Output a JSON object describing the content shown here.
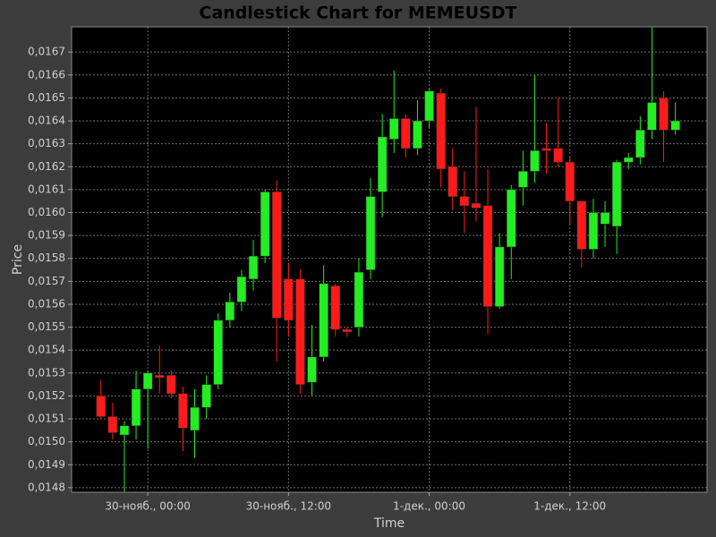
{
  "chart_data": {
    "type": "candlestick",
    "title": "Candlestick Chart for MEMEUSDT",
    "x_label": "Time",
    "y_label": "Price",
    "categories": [
      null,
      null,
      null,
      null,
      "30-нояб., 00:00",
      null,
      null,
      null,
      null,
      null,
      null,
      null,
      null,
      null,
      null,
      null,
      "30-нояб., 12:00",
      null,
      null,
      null,
      null,
      null,
      null,
      null,
      null,
      null,
      null,
      null,
      "1-дек., 00:00",
      null,
      null,
      null,
      null,
      null,
      null,
      null,
      null,
      null,
      null,
      null,
      "1-дек., 12:00",
      null,
      null,
      null,
      null,
      null,
      null,
      null,
      null,
      null
    ],
    "open": [
      0.0152,
      0.01511,
      0.01503,
      0.01507,
      0.01523,
      0.01529,
      0.01529,
      0.01521,
      0.01505,
      0.01515,
      0.01525,
      0.01553,
      0.01561,
      0.01571,
      0.01581,
      0.01609,
      0.01571,
      0.01571,
      0.01526,
      0.01537,
      0.01568,
      0.01549,
      0.0155,
      0.01575,
      0.01609,
      0.01632,
      0.01641,
      0.01628,
      0.0164,
      0.01652,
      0.0162,
      0.01607,
      0.01604,
      0.01603,
      0.01559,
      0.01585,
      0.01611,
      0.01618,
      0.01628,
      0.01628,
      0.01622,
      0.01605,
      0.01584,
      0.01595,
      0.01594,
      0.01622,
      0.01624,
      0.01636,
      0.0165,
      0.01636
    ],
    "high": [
      0.01527,
      0.01517,
      0.01509,
      0.01531,
      0.01531,
      0.01542,
      0.01531,
      0.01524,
      0.01523,
      0.01529,
      0.01556,
      0.01565,
      0.01575,
      0.01588,
      0.0161,
      0.01614,
      0.01578,
      0.01575,
      0.01551,
      0.01577,
      0.01569,
      0.0155,
      0.0158,
      0.01615,
      0.01643,
      0.01662,
      0.01643,
      0.01649,
      0.01654,
      0.01654,
      0.01628,
      0.01618,
      0.01646,
      0.01619,
      0.01591,
      0.01612,
      0.01627,
      0.0166,
      0.01639,
      0.0165,
      0.01624,
      0.01605,
      0.01606,
      0.01605,
      0.01623,
      0.01626,
      0.01642,
      0.01681,
      0.01653,
      0.01648
    ],
    "low": [
      0.0151,
      0.01501,
      0.01478,
      0.01501,
      0.01497,
      0.01521,
      0.01519,
      0.01496,
      0.01493,
      0.0151,
      0.01523,
      0.0155,
      0.01557,
      0.01566,
      0.01578,
      0.01535,
      0.01546,
      0.01521,
      0.0152,
      0.01535,
      0.01546,
      0.01546,
      0.01546,
      0.01571,
      0.01598,
      0.01626,
      0.01624,
      0.01625,
      0.01637,
      0.01611,
      0.01601,
      0.01591,
      0.01596,
      0.01547,
      0.01558,
      0.01571,
      0.01603,
      0.01613,
      0.01617,
      0.0162,
      0.01595,
      0.01576,
      0.0158,
      0.01585,
      0.01582,
      0.01619,
      0.01621,
      0.01632,
      0.01622,
      0.01634
    ],
    "close": [
      0.01511,
      0.01504,
      0.01507,
      0.01523,
      0.0153,
      0.01528,
      0.01521,
      0.01506,
      0.01515,
      0.01525,
      0.01553,
      0.01561,
      0.01572,
      0.01581,
      0.01609,
      0.01554,
      0.01553,
      0.01525,
      0.01537,
      0.01569,
      0.01549,
      0.01548,
      0.01574,
      0.01607,
      0.01633,
      0.01641,
      0.01628,
      0.0164,
      0.01653,
      0.01619,
      0.01607,
      0.01603,
      0.01602,
      0.01559,
      0.01585,
      0.0161,
      0.01618,
      0.01627,
      0.01627,
      0.01622,
      0.01605,
      0.01584,
      0.016,
      0.016,
      0.01622,
      0.01624,
      0.01636,
      0.01648,
      0.01636,
      0.0164
    ],
    "up_color": "#22ee22",
    "down_color": "#ff1a1a",
    "ylim": [
      0.01478,
      0.01681
    ],
    "yticks": [
      {
        "value": 0.0148,
        "label": "0,0148"
      },
      {
        "value": 0.0149,
        "label": "0,0149"
      },
      {
        "value": 0.015,
        "label": "0,0150"
      },
      {
        "value": 0.0151,
        "label": "0,0151"
      },
      {
        "value": 0.0152,
        "label": "0,0152"
      },
      {
        "value": 0.0153,
        "label": "0,0153"
      },
      {
        "value": 0.0154,
        "label": "0,0154"
      },
      {
        "value": 0.0155,
        "label": "0,0155"
      },
      {
        "value": 0.0156,
        "label": "0,0156"
      },
      {
        "value": 0.0157,
        "label": "0,0157"
      },
      {
        "value": 0.0158,
        "label": "0,0158"
      },
      {
        "value": 0.0159,
        "label": "0,0159"
      },
      {
        "value": 0.016,
        "label": "0,0160"
      },
      {
        "value": 0.0161,
        "label": "0,0161"
      },
      {
        "value": 0.0162,
        "label": "0,0162"
      },
      {
        "value": 0.0163,
        "label": "0,0163"
      },
      {
        "value": 0.0164,
        "label": "0,0164"
      },
      {
        "value": 0.0165,
        "label": "0,0165"
      },
      {
        "value": 0.0166,
        "label": "0,0166"
      },
      {
        "value": 0.0167,
        "label": "0,0167"
      }
    ],
    "grid": true
  }
}
